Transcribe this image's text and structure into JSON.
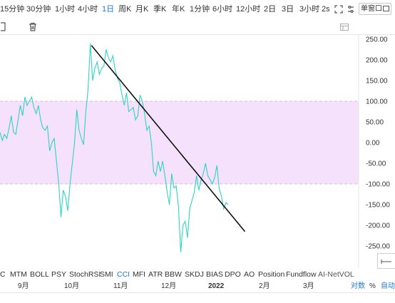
{
  "periods": [
    {
      "label": "15分钟",
      "active": false
    },
    {
      "label": "30分钟",
      "active": false
    },
    {
      "label": "1小时",
      "active": false
    },
    {
      "label": "4小时",
      "active": false
    },
    {
      "label": "1日",
      "active": true
    },
    {
      "label": "周K",
      "active": false
    },
    {
      "label": "月K",
      "active": false
    },
    {
      "label": "季K",
      "active": false
    },
    {
      "label": "年K",
      "active": false
    },
    {
      "label": "1分钟",
      "active": false
    },
    {
      "label": "6小时",
      "active": false
    },
    {
      "label": "12小时",
      "active": false
    },
    {
      "label": "2日",
      "active": false
    },
    {
      "label": "3日",
      "active": false
    },
    {
      "label": "3小时",
      "active": false
    },
    {
      "label": "2s",
      "active": false
    }
  ],
  "window_button": "单窗口",
  "indicators": [
    {
      "label": "C",
      "active": false
    },
    {
      "label": "MTM",
      "active": false
    },
    {
      "label": "BOLL",
      "active": false
    },
    {
      "label": "PSY",
      "active": false
    },
    {
      "label": "StochRSI",
      "active": false
    },
    {
      "label": "SMI",
      "active": false
    },
    {
      "label": "CCI",
      "active": true
    },
    {
      "label": "MFI",
      "active": false
    },
    {
      "label": "ATR",
      "active": false
    },
    {
      "label": "BBW",
      "active": false
    },
    {
      "label": "SKDJ",
      "active": false
    },
    {
      "label": "BIAS",
      "active": false
    },
    {
      "label": "DPO",
      "active": false
    },
    {
      "label": "AO",
      "active": false
    },
    {
      "label": "Position",
      "active": false
    },
    {
      "label": "Fundflow",
      "active": false
    },
    {
      "label": "AI-NetVOL",
      "active": false
    }
  ],
  "date_axis": {
    "labels": [
      {
        "text": "9月",
        "bold": false
      },
      {
        "text": "10月",
        "bold": false
      },
      {
        "text": "11月",
        "bold": false
      },
      {
        "text": "12月",
        "bold": false
      },
      {
        "text": "2022",
        "bold": true
      },
      {
        "text": "2月",
        "bold": false
      },
      {
        "text": "3月",
        "bold": false
      }
    ],
    "scale_log": "对数",
    "scale_pct": "%",
    "scale_auto": "自动"
  },
  "chart_data": {
    "type": "line",
    "title": "",
    "indicator": "CCI",
    "ylim": [
      -270,
      255
    ],
    "y_ticks": [
      "250.00",
      "200.00",
      "150.00",
      "100.00",
      "50.00",
      "0.00",
      "-50.00",
      "-100.00",
      "-150.00",
      "-200.00",
      "-250.00"
    ],
    "band": {
      "upper": 100,
      "lower": -100,
      "color": "#f5e1fb"
    },
    "series": [
      {
        "color": "#2ed3c4",
        "values": [
          25,
          5,
          20,
          10,
          35,
          65,
          25,
          20,
          55,
          90,
          65,
          110,
          90,
          100,
          110,
          85,
          70,
          90,
          55,
          35,
          30,
          40,
          -20,
          0,
          10,
          -45,
          -100,
          -180,
          -115,
          -130,
          -165,
          -100,
          -50,
          0,
          80,
          30,
          10,
          -5,
          75,
          130,
          240,
          150,
          180,
          195,
          165,
          180,
          185,
          225,
          205,
          195,
          210,
          175,
          155,
          145,
          115,
          90,
          120,
          75,
          80,
          85,
          55,
          65,
          115,
          100,
          70,
          30,
          40,
          0,
          -70,
          -80,
          -45,
          -70,
          -45,
          -80,
          -120,
          -150,
          -75,
          -110,
          -105,
          -155,
          -265,
          -200,
          -190,
          -230,
          -160,
          -140,
          -120,
          -80,
          -115,
          -90,
          -75,
          -50,
          -80,
          -90,
          -100,
          -85,
          -55,
          -110,
          -130,
          -160,
          -145,
          -150
        ]
      }
    ],
    "trendline": {
      "from": [
        0.255,
        235
      ],
      "to": [
        0.62,
        -215
      ],
      "color": "#111111"
    },
    "grid": false,
    "color_line": "#2ed3c4"
  }
}
